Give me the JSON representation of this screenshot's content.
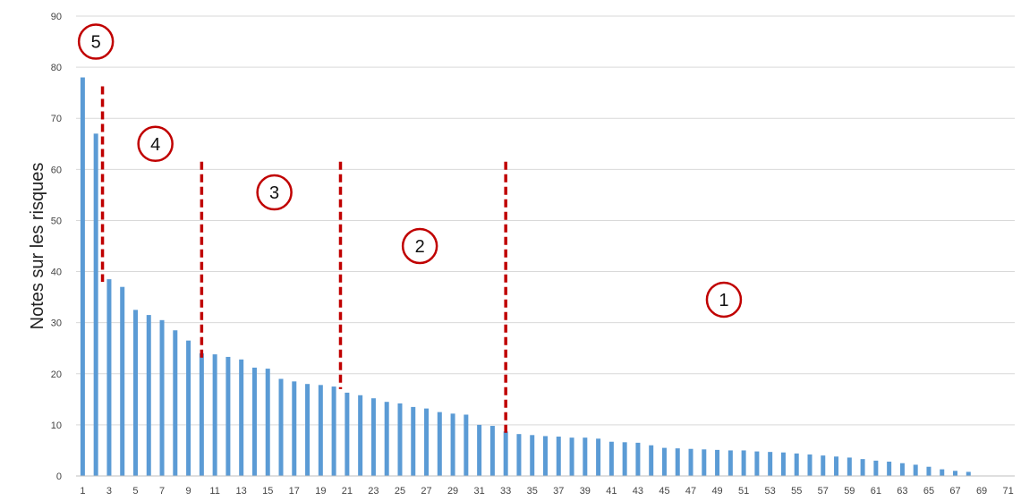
{
  "chart_data": {
    "type": "bar",
    "title": "",
    "ylabel": "Notes sur les risques",
    "xlabel": "",
    "ylim": [
      0,
      90
    ],
    "yticks": [
      0,
      10,
      20,
      30,
      40,
      50,
      60,
      70,
      80,
      90
    ],
    "x": [
      1,
      2,
      3,
      4,
      5,
      6,
      7,
      8,
      9,
      10,
      11,
      12,
      13,
      14,
      15,
      16,
      17,
      18,
      19,
      20,
      21,
      22,
      23,
      24,
      25,
      26,
      27,
      28,
      29,
      30,
      31,
      32,
      33,
      34,
      35,
      36,
      37,
      38,
      39,
      40,
      41,
      42,
      43,
      44,
      45,
      46,
      47,
      48,
      49,
      50,
      51,
      52,
      53,
      54,
      55,
      56,
      57,
      58,
      59,
      60,
      61,
      62,
      63,
      64,
      65,
      66,
      67,
      68,
      69,
      70,
      71
    ],
    "xtick_labels": [
      "1",
      "3",
      "5",
      "7",
      "9",
      "11",
      "13",
      "15",
      "17",
      "19",
      "21",
      "23",
      "25",
      "27",
      "29",
      "31",
      "33",
      "35",
      "37",
      "39",
      "41",
      "43",
      "45",
      "47",
      "49",
      "51",
      "53",
      "55",
      "57",
      "59",
      "61",
      "63",
      "65",
      "67",
      "69",
      "71"
    ],
    "values": [
      78,
      67,
      38.5,
      37,
      32.5,
      31.5,
      30.5,
      28.5,
      26.5,
      24,
      23.8,
      23.3,
      22.8,
      21.2,
      21,
      19,
      18.5,
      18,
      17.8,
      17.5,
      16.3,
      15.8,
      15.2,
      14.5,
      14.2,
      13.5,
      13.2,
      12.5,
      12.2,
      12,
      10,
      9.8,
      8.7,
      8.2,
      8,
      7.8,
      7.7,
      7.5,
      7.5,
      7.3,
      6.7,
      6.6,
      6.5,
      6,
      5.5,
      5.4,
      5.3,
      5.2,
      5.1,
      5,
      5,
      4.8,
      4.7,
      4.6,
      4.4,
      4.2,
      4,
      3.8,
      3.6,
      3.3,
      3,
      2.8,
      2.5,
      2.2,
      1.8,
      1.3,
      1,
      0.8,
      0,
      0,
      0
    ],
    "grid": true,
    "bar_color": "#5b9bd5",
    "divider_color": "#c00000",
    "dividers_x": [
      2.5,
      10,
      20.5,
      33
    ],
    "zones": [
      {
        "label": "5",
        "x": 2,
        "y": 85
      },
      {
        "label": "4",
        "x": 6.5,
        "y": 65
      },
      {
        "label": "3",
        "x": 15.5,
        "y": 55.5
      },
      {
        "label": "2",
        "x": 26.5,
        "y": 45
      },
      {
        "label": "1",
        "x": 49.5,
        "y": 34.5
      }
    ]
  }
}
